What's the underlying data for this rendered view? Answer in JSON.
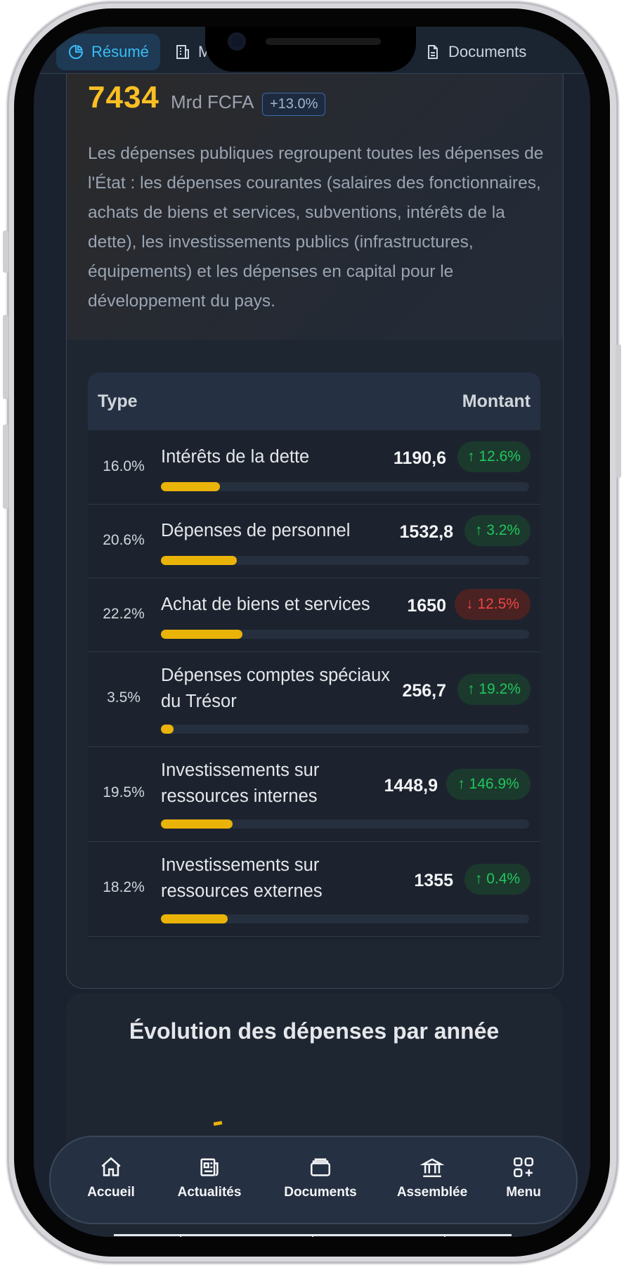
{
  "tabs": [
    {
      "label": "Résumé",
      "icon": "pie-chart-icon",
      "active": true
    },
    {
      "label": "M",
      "icon": "building-icon",
      "active": false
    },
    {
      "label": "Documents",
      "icon": "document-icon",
      "active": false
    }
  ],
  "summary": {
    "total": "7434",
    "unit": "Mrd FCFA",
    "growth": "+13.0%",
    "description": "Les dépenses publiques regroupent toutes les dépenses de l'État : les dépenses courantes (salaires des fonctionnaires, achats de biens et services, subventions, intérêts de la dette), les investissements publics (infrastructures, équipements) et les dépenses en capital pour le développement du pays."
  },
  "table": {
    "col_type": "Type",
    "col_amount": "Montant",
    "rows": [
      {
        "pct": "16.0%",
        "label": "Intérêts de la dette",
        "amount": "1190,6",
        "change": "↑ 12.6%",
        "direction": "up",
        "share": 0.16
      },
      {
        "pct": "20.6%",
        "label": "Dépenses de personnel",
        "amount": "1532,8",
        "change": "↑ 3.2%",
        "direction": "up",
        "share": 0.206
      },
      {
        "pct": "22.2%",
        "label": "Achat de biens et services",
        "amount": "1650",
        "change": "↓ 12.5%",
        "direction": "down",
        "share": 0.222
      },
      {
        "pct": "3.5%",
        "label": "Dépenses comptes spéciaux du Trésor",
        "amount": "256,7",
        "change": "↑ 19.2%",
        "direction": "up",
        "share": 0.035
      },
      {
        "pct": "19.5%",
        "label": "Investissements sur ressources internes",
        "amount": "1448,9",
        "change": "↑ 146.9%",
        "direction": "up",
        "share": 0.195
      },
      {
        "pct": "18.2%",
        "label": "Investissements sur ressources externes",
        "amount": "1355",
        "change": "↑ 0.4%",
        "direction": "up",
        "share": 0.182
      }
    ]
  },
  "evolution": {
    "title": "Évolution des dépenses par année"
  },
  "colors": {
    "accent": "#fbbf24",
    "bar": "#eab308",
    "up": "#22c55e",
    "down": "#ef4444",
    "tab_active": "#38bdf8"
  },
  "bottom_nav": [
    {
      "label": "Accueil",
      "icon": "home-icon"
    },
    {
      "label": "Actualités",
      "icon": "newspaper-icon"
    },
    {
      "label": "Documents",
      "icon": "folder-icon"
    },
    {
      "label": "Assemblée",
      "icon": "institution-icon"
    },
    {
      "label": "Menu",
      "icon": "grid-plus-icon"
    }
  ]
}
